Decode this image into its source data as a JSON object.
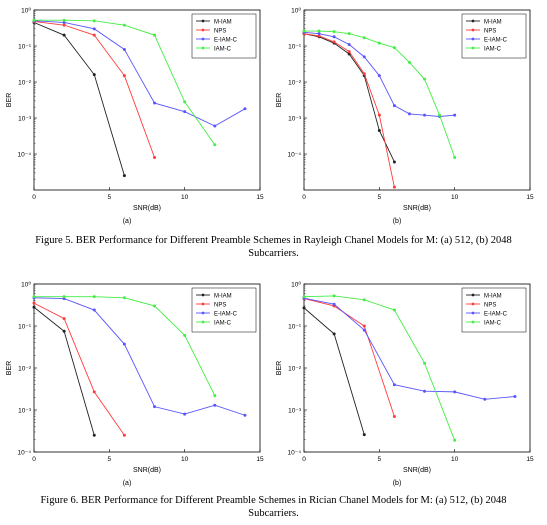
{
  "captions": {
    "fig5": "Figure 5. BER Performance for Different Preamble Schemes in Rayleigh Chanel Models for M: (a) 512, (b) 2048 Subcarriers.",
    "fig6": "Figure 6. BER Performance for Different Preamble Schemes in Rician Chanel Models for M: (a) 512, (b) 2048 Subcarriers."
  },
  "colors": {
    "M-IAM": "#222222",
    "NPS": "#ff3b3b",
    "E-IAM-C": "#5a55ff",
    "IAM-C": "#44ee44"
  },
  "chart_data": [
    {
      "id": "fig5a",
      "type": "line",
      "sublabel": "(a)",
      "xlabel": "SNR(dB)",
      "ylabel": "BER",
      "log_y": true,
      "xlim": [
        0,
        15
      ],
      "ylim": [
        1e-05,
        1
      ],
      "xticks": [
        "0",
        "5",
        "10",
        "15"
      ],
      "yticks": [
        "10⁰",
        "10⁻¹",
        "10⁻²",
        "10⁻³",
        "10⁻⁴"
      ],
      "grid": false,
      "legend": "top-right",
      "series": [
        {
          "name": "M-IAM",
          "x": [
            0,
            2,
            4,
            6
          ],
          "y": [
            0.45,
            0.2,
            0.016,
            2.5e-05
          ]
        },
        {
          "name": "NPS",
          "x": [
            0,
            2,
            4,
            6,
            8
          ],
          "y": [
            0.48,
            0.38,
            0.2,
            0.015,
            8e-05
          ]
        },
        {
          "name": "E-IAM-C",
          "x": [
            0,
            2,
            4,
            6,
            8,
            10,
            12,
            14
          ],
          "y": [
            0.5,
            0.45,
            0.3,
            0.08,
            0.0026,
            0.0015,
            0.0006,
            0.0018
          ]
        },
        {
          "name": "IAM-C",
          "x": [
            0,
            2,
            4,
            6,
            8,
            10,
            12
          ],
          "y": [
            0.52,
            0.52,
            0.5,
            0.38,
            0.2,
            0.0028,
            0.00018
          ]
        }
      ]
    },
    {
      "id": "fig5b",
      "type": "line",
      "sublabel": "(b)",
      "xlabel": "SNR(dB)",
      "ylabel": "BER",
      "log_y": true,
      "xlim": [
        0,
        15
      ],
      "ylim": [
        1e-05,
        1
      ],
      "xticks": [
        "0",
        "5",
        "10",
        "15"
      ],
      "yticks": [
        "10⁰",
        "10⁻¹",
        "10⁻²",
        "10⁻³",
        "10⁻⁴"
      ],
      "grid": false,
      "legend": "top-right",
      "series": [
        {
          "name": "M-IAM",
          "x": [
            0,
            1,
            2,
            3,
            4,
            5,
            6
          ],
          "y": [
            0.22,
            0.18,
            0.12,
            0.06,
            0.015,
            0.00045,
            6e-05
          ]
        },
        {
          "name": "NPS",
          "x": [
            0,
            1,
            2,
            3,
            4,
            5,
            6
          ],
          "y": [
            0.22,
            0.19,
            0.13,
            0.07,
            0.017,
            0.0012,
            1.2e-05
          ]
        },
        {
          "name": "E-IAM-C",
          "x": [
            0,
            1,
            2,
            3,
            4,
            5,
            6,
            7,
            8,
            9,
            10
          ],
          "y": [
            0.24,
            0.22,
            0.18,
            0.11,
            0.05,
            0.015,
            0.0022,
            0.0013,
            0.0012,
            0.0011,
            0.0012
          ]
        },
        {
          "name": "IAM-C",
          "x": [
            0,
            1,
            2,
            3,
            4,
            5,
            6,
            7,
            8,
            9,
            10
          ],
          "y": [
            0.26,
            0.26,
            0.25,
            0.22,
            0.17,
            0.12,
            0.09,
            0.035,
            0.012,
            0.0012,
            8e-05
          ]
        }
      ]
    },
    {
      "id": "fig6a",
      "type": "line",
      "sublabel": "(a)",
      "xlabel": "SNR(dB)",
      "ylabel": "BER",
      "log_y": true,
      "xlim": [
        0,
        15
      ],
      "ylim": [
        0.0001,
        1
      ],
      "xticks": [
        "0",
        "5",
        "10",
        "15"
      ],
      "yticks": [
        "10⁰",
        "10⁻¹",
        "10⁻²",
        "10⁻³",
        "10⁻⁴"
      ],
      "grid": false,
      "legend": "top-right",
      "series": [
        {
          "name": "M-IAM",
          "x": [
            0,
            2,
            4
          ],
          "y": [
            0.28,
            0.075,
            0.00025
          ]
        },
        {
          "name": "NPS",
          "x": [
            0,
            2,
            4,
            6
          ],
          "y": [
            0.35,
            0.15,
            0.0027,
            0.00025
          ]
        },
        {
          "name": "E-IAM-C",
          "x": [
            0,
            2,
            4,
            6,
            8,
            10,
            12,
            14
          ],
          "y": [
            0.47,
            0.45,
            0.24,
            0.037,
            0.0012,
            0.0008,
            0.0013,
            0.00075
          ]
        },
        {
          "name": "IAM-C",
          "x": [
            0,
            2,
            4,
            6,
            8,
            10,
            12
          ],
          "y": [
            0.5,
            0.5,
            0.5,
            0.47,
            0.3,
            0.06,
            0.0022
          ]
        }
      ]
    },
    {
      "id": "fig6b",
      "type": "line",
      "sublabel": "(b)",
      "xlabel": "SNR(dB)",
      "ylabel": "BER",
      "log_y": true,
      "xlim": [
        0,
        15
      ],
      "ylim": [
        0.0001,
        1
      ],
      "xticks": [
        "0",
        "5",
        "10",
        "15"
      ],
      "yticks": [
        "10⁰",
        "10⁻¹",
        "10⁻²",
        "10⁻³",
        "10⁻⁴"
      ],
      "grid": false,
      "legend": "top-right",
      "series": [
        {
          "name": "M-IAM",
          "x": [
            0,
            2,
            4
          ],
          "y": [
            0.27,
            0.065,
            0.00026
          ]
        },
        {
          "name": "NPS",
          "x": [
            0,
            2,
            4,
            6
          ],
          "y": [
            0.45,
            0.3,
            0.1,
            0.0007
          ]
        },
        {
          "name": "E-IAM-C",
          "x": [
            0,
            2,
            4,
            6,
            8,
            10,
            12,
            14
          ],
          "y": [
            0.46,
            0.33,
            0.08,
            0.004,
            0.0028,
            0.0027,
            0.0018,
            0.0021
          ]
        },
        {
          "name": "IAM-C",
          "x": [
            0,
            2,
            4,
            6,
            8,
            10
          ],
          "y": [
            0.5,
            0.52,
            0.42,
            0.24,
            0.013,
            0.00019
          ]
        }
      ]
    }
  ]
}
